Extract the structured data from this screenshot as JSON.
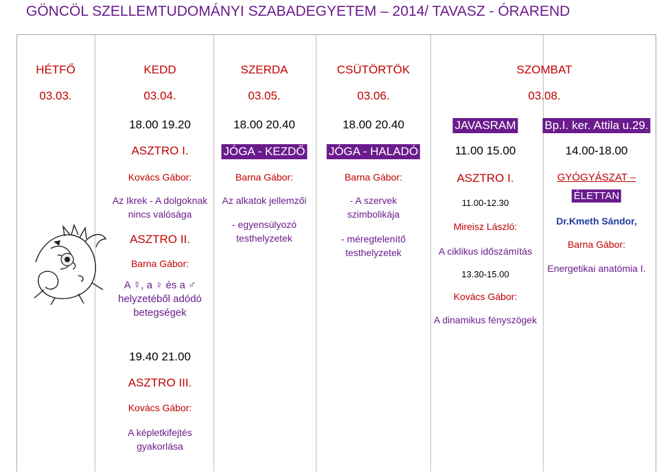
{
  "title": "GÖNCÖL SZELLEMTUDOMÁNYI SZABADEGYETEM – 2014/ TAVASZ - ÓRAREND",
  "days": [
    {
      "name": "HÉTFŐ",
      "date": "03.03."
    },
    {
      "name": "KEDD",
      "date": "03.04."
    },
    {
      "name": "SZERDA",
      "date": "03.05."
    },
    {
      "name": "CSÜTÖRTÖK",
      "date": "03.06."
    },
    {
      "name": "SZOMBAT",
      "date": "03.08."
    }
  ],
  "kedd": {
    "time1": "18.00 19.20",
    "course1": "ASZTRO I.",
    "teacher1": "Kovács Gábor:",
    "topic1a": "Az Ikrek - A dolgoknak",
    "topic1b": "nincs valósága",
    "course2": "ASZTRO II.",
    "teacher2": "Barna Gábor:",
    "topic2a": "A ☿, a ♀ és a ♂",
    "topic2b": "helyzetéből adódó",
    "topic2c": "betegségek",
    "time3": "19.40 21.00",
    "course3": "ASZTRO III.",
    "teacher3": "Kovács Gábor:",
    "topic3a": "A képletkifejtés",
    "topic3b": "gyakorlása"
  },
  "szerda": {
    "time": "18.00 20.40",
    "course": "JÓGA - KEZDŐ",
    "teacher": "Barna Gábor:",
    "topic_a": "Az alkatok jellemzői",
    "topic_b": "- egyensúlyozó",
    "topic_c": "testhelyzetek"
  },
  "csutortok": {
    "time": "18.00 20.40",
    "course": "JÓGA - HALADÓ",
    "teacher": "Barna Gábor:",
    "topic_a": "- A szervek",
    "topic_b": "szimbolikája",
    "topic_c": "- méregtelenítő",
    "topic_d": "testhelyzetek"
  },
  "szombat1": {
    "label": "JAVASRAM",
    "time": "11.00 15.00",
    "course": "ASZTRO I.",
    "time_a": "11.00-12.30",
    "teacher_a": "Mireisz László:",
    "topic_a": "A ciklikus időszámítás",
    "time_b": "13.30-15.00",
    "teacher_b": "Kovács Gábor:",
    "topic_b": "A dinamikus fényszögek"
  },
  "szombat2": {
    "location": "Bp.I. ker. Attila u.29.",
    "time": "14.00-18.00",
    "course_a": "GYÓGYÁSZAT –",
    "course_b": "ÉLETTAN",
    "teacher_a": "Dr.Kmeth Sándor,",
    "teacher_b": "Barna Gábor:",
    "topic": "Energetikai anatómia I."
  }
}
